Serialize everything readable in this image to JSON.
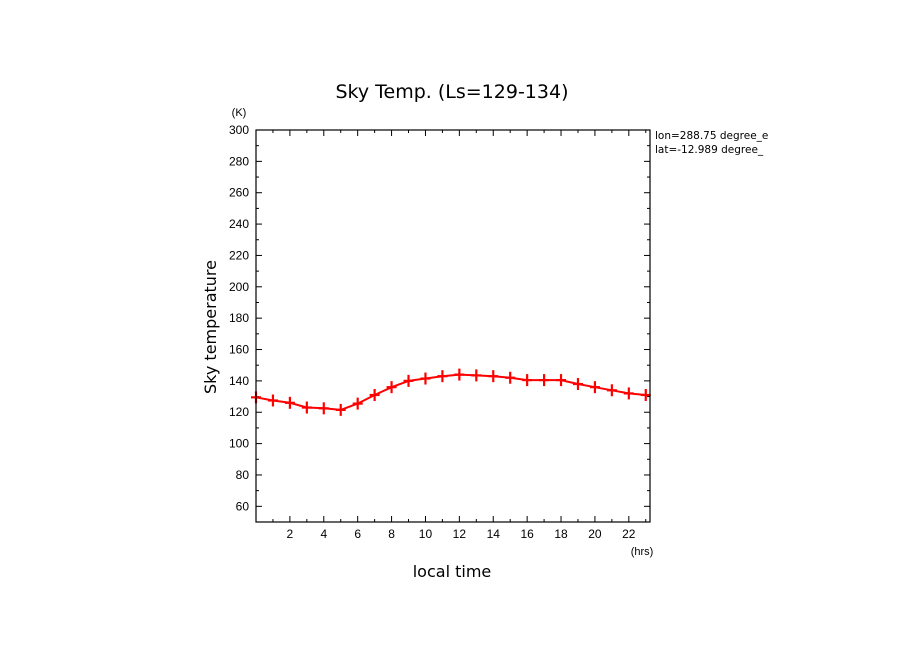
{
  "chart_data": {
    "type": "line",
    "title": "Sky Temp. (Ls=129-134)",
    "xlabel": "local time",
    "ylabel": "Sky temperature",
    "x_unit": "(hrs)",
    "y_unit": "(K)",
    "xlim": [
      0,
      23.25
    ],
    "ylim": [
      50,
      300
    ],
    "x_ticks": [
      2,
      4,
      6,
      8,
      10,
      12,
      14,
      16,
      18,
      20,
      22
    ],
    "y_ticks": [
      60,
      80,
      100,
      120,
      140,
      160,
      180,
      200,
      220,
      240,
      260,
      280,
      300
    ],
    "annotations": [
      "lon=288.75 degree_e",
      "lat=-12.989 degree_"
    ],
    "series_color": "#ff0000",
    "grid": false,
    "series": [
      {
        "x": [
          0,
          1,
          2,
          3,
          4,
          5,
          6,
          7,
          8,
          9,
          10,
          11,
          12,
          13,
          14,
          15,
          16,
          17,
          18,
          19,
          20,
          21,
          22,
          23
        ],
        "y": [
          129.5,
          127.5,
          126,
          123,
          122.5,
          121.5,
          125.5,
          131,
          136,
          140,
          141.5,
          143,
          144,
          143.5,
          143,
          142,
          140.5,
          140.5,
          140.5,
          138,
          136,
          134,
          132,
          131
        ]
      }
    ]
  }
}
